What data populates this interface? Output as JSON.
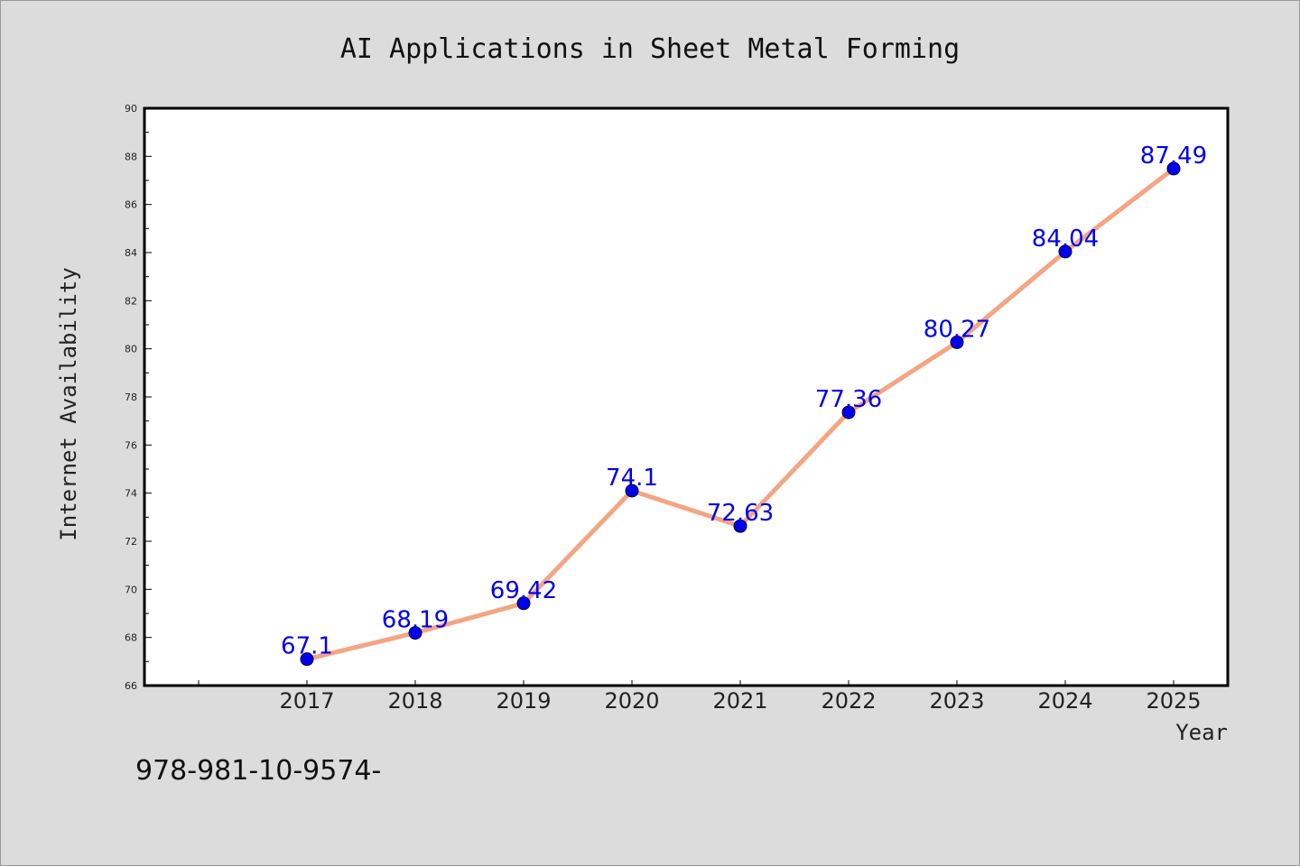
{
  "chart_data": {
    "type": "line",
    "title": "AI Applications in Sheet Metal Forming",
    "xlabel": "Year",
    "ylabel": "Internet Availability",
    "categories": [
      "2017",
      "2018",
      "2019",
      "2020",
      "2021",
      "2022",
      "2023",
      "2024",
      "2025"
    ],
    "series": [
      {
        "values": [
          67.1,
          68.19,
          69.42,
          74.1,
          72.63,
          77.36,
          80.27,
          84.04,
          87.49
        ],
        "data_labels": [
          "67.1",
          "68.19",
          "69.42",
          "74.1",
          "72.63",
          "77.36",
          "80.27",
          "84.04",
          "87.49"
        ]
      }
    ],
    "ylim": [
      66,
      90
    ],
    "yticks": [
      "66",
      "68",
      "70",
      "72",
      "74",
      "76",
      "78",
      "80",
      "82",
      "84",
      "86",
      "88",
      "90"
    ],
    "grid": false,
    "colors": {
      "line": "#f4a582",
      "marker": "#0000ee",
      "data_label": "#0000ee",
      "background": "#dcdcdc",
      "plot_area": "#ffffff"
    }
  },
  "footer_text": "978-981-10-9574-"
}
